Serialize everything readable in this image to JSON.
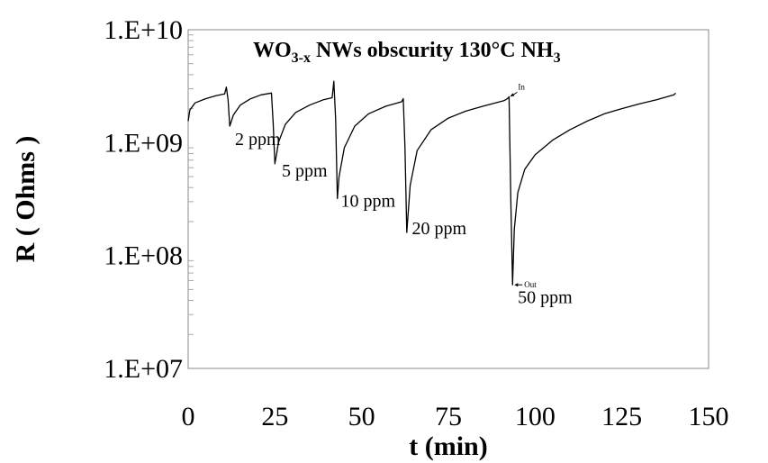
{
  "chart_data": {
    "type": "line",
    "title": "WO3-x NWs obscurity 130°C NH3",
    "title_parts": {
      "base1": "WO",
      "sub1": "3-x",
      "base2": " NWs obscurity 130°C NH",
      "sub2": "3"
    },
    "xlabel": "t (min)",
    "ylabel": "R ( Ohms )",
    "xlim": [
      0,
      150
    ],
    "ylim": [
      10000000,
      10000000000
    ],
    "y_scale": "log",
    "x_ticks": [
      0,
      25,
      50,
      75,
      100,
      125,
      150
    ],
    "x_tick_labels": [
      "0",
      "25",
      "50",
      "75",
      "100",
      "125",
      "150"
    ],
    "y_ticks": [
      10000000,
      100000000,
      1000000000,
      10000000000
    ],
    "y_tick_labels": [
      "1.E+07",
      "1.E+08",
      "1.E+09",
      "1.E+10"
    ],
    "grid": false,
    "legend": "none",
    "line_color": "#000000",
    "series": [
      {
        "x": [
          0,
          0.5,
          2,
          5,
          8,
          10.5,
          11,
          11.5,
          12,
          13,
          15,
          18,
          21,
          24,
          24.5,
          25,
          25.5,
          26,
          28,
          31,
          35,
          39,
          41.5,
          42,
          42.5,
          43,
          43.5,
          45,
          48,
          52,
          57,
          61.5,
          62,
          62.5,
          63,
          64,
          66,
          70,
          75,
          80,
          85,
          91,
          92,
          92.5,
          93,
          93.5,
          94,
          95,
          97,
          100,
          105,
          110,
          115,
          120,
          125,
          130,
          135,
          140,
          140.5
        ],
        "y": [
          1550000000,
          1950000000,
          2250000000,
          2450000000,
          2600000000,
          2700000000,
          3100000000,
          2400000000,
          1400000000,
          1750000000,
          2150000000,
          2450000000,
          2650000000,
          2750000000,
          1500000000,
          650000000,
          800000000,
          1000000000,
          1450000000,
          1850000000,
          2150000000,
          2400000000,
          2500000000,
          3500000000,
          1600000000,
          320000000,
          500000000,
          900000000,
          1400000000,
          1800000000,
          2100000000,
          2300000000,
          2450000000,
          900000000,
          160000000,
          420000000,
          850000000,
          1300000000,
          1650000000,
          1900000000,
          2100000000,
          2350000000,
          2450000000,
          2550000000,
          300000000,
          55000000,
          170000000,
          360000000,
          580000000,
          780000000,
          1050000000,
          1300000000,
          1550000000,
          1800000000,
          2000000000,
          2200000000,
          2400000000,
          2650000000,
          2750000000
        ]
      }
    ],
    "annotations": [
      {
        "text": "2 ppm",
        "x": 13.5,
        "y": 950000000
      },
      {
        "text": "5 ppm",
        "x": 27,
        "y": 500000000
      },
      {
        "text": "10 ppm",
        "x": 44,
        "y": 270000000
      },
      {
        "text": "20 ppm",
        "x": 64.5,
        "y": 155000000
      },
      {
        "text": "50 ppm",
        "x": 95,
        "y": 38000000
      }
    ],
    "markers": [
      {
        "text": "In",
        "x": 92.5,
        "y": 2550000000,
        "label_dx": 2,
        "label_dy": 5.5
      },
      {
        "text": "Out",
        "x": 93.5,
        "y": 55000000,
        "label_dx": 2.5,
        "label_dy": 0
      }
    ]
  }
}
